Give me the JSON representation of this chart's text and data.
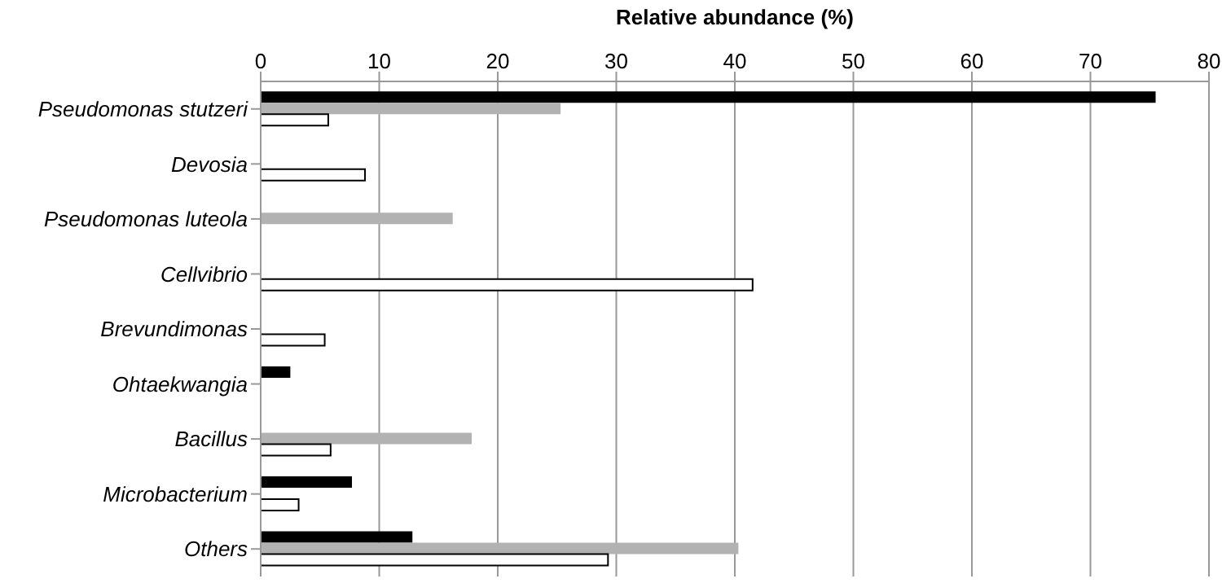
{
  "chart_data": {
    "type": "bar",
    "orientation": "horizontal",
    "xlabel": "Relative abundance (%)",
    "categories": [
      "Pseudomonas stutzeri",
      "Devosia",
      "Pseudomonas luteola",
      "Cellvibrio",
      "Brevundimonas",
      "Ohtaekwangia",
      "Bacillus",
      "Microbacterium",
      "Others"
    ],
    "series": [
      {
        "color": "#000000",
        "values": [
          75.5,
          null,
          null,
          null,
          null,
          2.5,
          null,
          7.7,
          12.8
        ]
      },
      {
        "color": "#b2b2b2",
        "values": [
          25.3,
          null,
          16.2,
          null,
          null,
          null,
          17.8,
          null,
          40.3
        ]
      },
      {
        "color": "#ffffff",
        "values": [
          5.7,
          8.8,
          null,
          41.5,
          5.4,
          null,
          5.9,
          3.2,
          29.3
        ]
      }
    ],
    "xlim": [
      0,
      80
    ],
    "xticks": [
      0,
      10,
      20,
      30,
      40,
      50,
      60,
      70,
      80
    ],
    "grid": "x"
  }
}
